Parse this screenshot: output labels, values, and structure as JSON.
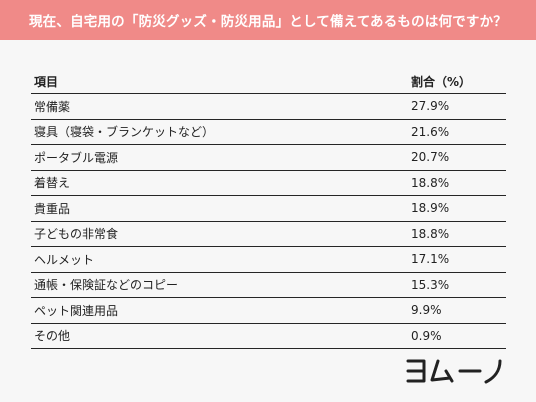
{
  "title": "現在、自宅用の「防災グッズ・防災用品」として備えてあるものは何ですか？",
  "table": {
    "headers": {
      "item": "項目",
      "ratio": "割合（%）"
    },
    "rows": [
      {
        "item": "常備薬",
        "ratio": "27.9%"
      },
      {
        "item": "寝具（寝袋・ブランケットなど）",
        "ratio": "21.6%"
      },
      {
        "item": "ポータブル電源",
        "ratio": "20.7%"
      },
      {
        "item": "着替え",
        "ratio": "18.8%"
      },
      {
        "item": "貴重品",
        "ratio": "18.9%"
      },
      {
        "item": "子どもの非常食",
        "ratio": "18.8%"
      },
      {
        "item": "ヘルメット",
        "ratio": "17.1%"
      },
      {
        "item": "通帳・保険証などのコピー",
        "ratio": "15.3%"
      },
      {
        "item": "ペット関連用品",
        "ratio": "9.9%"
      },
      {
        "item": "その他",
        "ratio": "0.9%"
      }
    ]
  },
  "logo": {
    "text": "ヨムーノ",
    "color": "#222222"
  },
  "colors": {
    "header_bg": "#f08a88",
    "header_text": "#ffffff",
    "background": "#f7f7f7"
  }
}
